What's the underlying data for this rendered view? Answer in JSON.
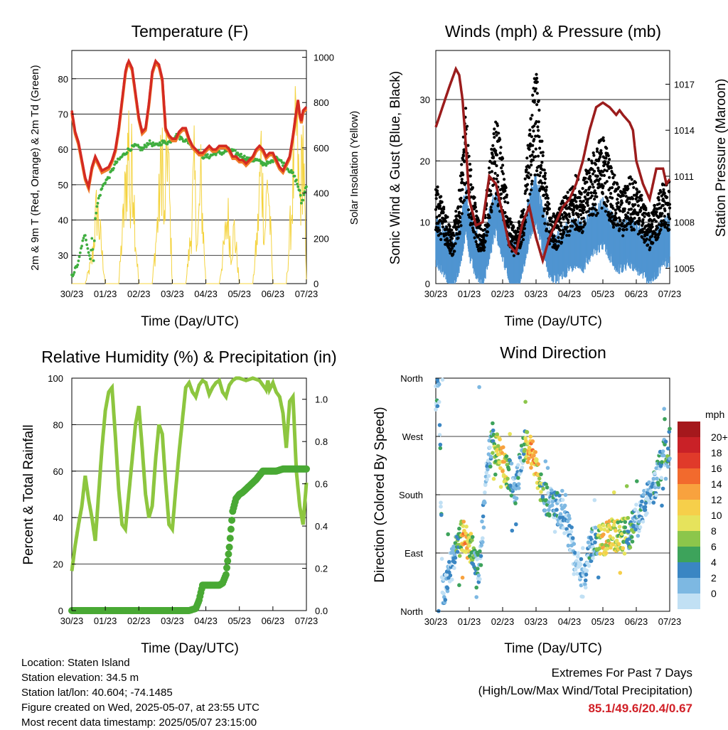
{
  "chart_data": [
    {
      "type": "line",
      "title": "Temperature (F)",
      "xlabel": "Time (Day/UTC)",
      "ylabel": "2m & 9m T (Red, Orange) & 2m Td (Green)",
      "y2label": "Solar Insolation (Yellow)",
      "x_ticks": [
        "30/23",
        "01/23",
        "02/23",
        "03/23",
        "04/23",
        "05/23",
        "06/23",
        "07/23"
      ],
      "y_ticks": [
        30,
        40,
        50,
        60,
        70,
        80
      ],
      "y2_ticks": [
        0,
        200,
        400,
        600,
        800,
        1000
      ],
      "ylim": [
        22,
        88
      ],
      "y2lim": [
        0,
        1030
      ],
      "colors": {
        "t2m": "#d42a22",
        "t9m": "#f07a28",
        "td": "#3fae3f",
        "solar": "#f4d33f"
      },
      "series": [
        {
          "key": "t2m",
          "x": [
            0,
            0.05,
            0.1,
            0.2,
            0.3,
            0.4,
            0.5,
            0.6,
            0.7,
            0.8,
            0.9,
            1.0,
            1.1,
            1.2,
            1.3,
            1.4,
            1.5,
            1.6,
            1.65,
            1.7,
            1.8,
            1.9,
            2.0,
            2.1,
            2.2,
            2.3,
            2.4,
            2.5,
            2.6,
            2.7,
            2.75,
            2.8,
            2.9,
            3.0,
            3.1,
            3.2,
            3.3,
            3.4,
            3.5,
            3.6,
            3.7,
            3.8,
            3.9,
            4.0,
            4.1,
            4.2,
            4.3,
            4.4,
            4.5,
            4.6,
            4.7,
            4.8,
            4.9,
            5.0,
            5.1,
            5.2,
            5.3,
            5.4,
            5.5,
            5.6,
            5.7,
            5.8,
            5.9,
            6.0,
            6.1,
            6.2,
            6.3,
            6.4,
            6.5,
            6.6,
            6.7,
            6.75,
            6.8,
            6.85,
            6.9,
            7.0
          ],
          "y": [
            71,
            68,
            65,
            62,
            57,
            52,
            49.5,
            55,
            58,
            56,
            54,
            54.5,
            55,
            57,
            60,
            66,
            74,
            82,
            84,
            85,
            83,
            76,
            69,
            65,
            66,
            73,
            82,
            85,
            84,
            80,
            73,
            66,
            64,
            63,
            63,
            65,
            66,
            66,
            63,
            61,
            60,
            59,
            59,
            60,
            61,
            60,
            60,
            61,
            61,
            61,
            60,
            58,
            58,
            57,
            57,
            56,
            57,
            58,
            60,
            61,
            60,
            58,
            59,
            59,
            57,
            55,
            54,
            56,
            58,
            64,
            71,
            74,
            70,
            68,
            71,
            72
          ]
        },
        {
          "key": "td",
          "x": [
            0,
            0.2,
            0.3,
            0.4,
            0.5,
            0.55,
            0.6,
            0.65,
            0.7,
            0.8,
            0.9,
            1.0,
            1.1,
            1.2,
            1.3,
            1.5,
            1.7,
            1.9,
            2.1,
            2.3,
            2.5,
            2.7,
            2.9,
            3.1,
            3.3,
            3.5,
            3.7,
            3.9,
            4.1,
            4.3,
            4.5,
            4.7,
            4.9,
            5.1,
            5.3,
            5.5,
            5.7,
            5.9,
            6.1,
            6.3,
            6.5,
            6.6,
            6.7,
            6.8,
            6.85,
            6.9,
            7.0
          ],
          "y": [
            24,
            28,
            33,
            36,
            31,
            29,
            35,
            28,
            41,
            46,
            49,
            51,
            52,
            54,
            56,
            58,
            60,
            61,
            60,
            62,
            61,
            62,
            62,
            64,
            63,
            62,
            60,
            58,
            58,
            59,
            59,
            60,
            59,
            58,
            57,
            57,
            56,
            56,
            58,
            56,
            54,
            53,
            51,
            48,
            45,
            46,
            50
          ]
        },
        {
          "key": "solar",
          "x": [
            0,
            0.4,
            0.6,
            0.75,
            0.9,
            1.0,
            1.4,
            1.6,
            1.7,
            1.75,
            1.8,
            1.9,
            2.0,
            2.4,
            2.6,
            2.7,
            2.75,
            2.85,
            3.0,
            3.4,
            3.55,
            3.65,
            3.75,
            3.85,
            4.0,
            4.4,
            4.55,
            4.65,
            4.75,
            4.85,
            5.0,
            5.4,
            5.55,
            5.65,
            5.75,
            5.85,
            6.0,
            6.4,
            6.55,
            6.7,
            6.8,
            6.9,
            7.0
          ],
          "y": [
            0,
            0,
            150,
            500,
            200,
            0,
            0,
            600,
            950,
            400,
            900,
            300,
            0,
            0,
            500,
            900,
            300,
            950,
            0,
            0,
            300,
            700,
            250,
            650,
            0,
            0,
            250,
            450,
            200,
            350,
            0,
            0,
            350,
            850,
            300,
            700,
            0,
            0,
            450,
            1000,
            500,
            900,
            0
          ]
        }
      ]
    },
    {
      "type": "scatter",
      "title": "Winds (mph) & Pressure (mb)",
      "xlabel": "Time (Day/UTC)",
      "ylabel": "Sonic Wind & Gust (Blue, Black)",
      "y2label": "Station Pressure (Maroon)",
      "x_ticks": [
        "30/23",
        "01/23",
        "02/23",
        "03/23",
        "04/23",
        "05/23",
        "06/23",
        "07/23"
      ],
      "y_ticks": [
        0,
        10,
        20,
        30
      ],
      "y2_ticks": [
        1005,
        1008,
        1011,
        1014,
        1017
      ],
      "ylim": [
        0,
        38
      ],
      "y2lim": [
        1004,
        1019.2
      ],
      "colors": {
        "wind": "#4f94d1",
        "gust": "#000000",
        "pressure": "#9b1c1c"
      },
      "wind_mean": {
        "x": [
          0,
          0.3,
          0.5,
          0.7,
          0.9,
          1.0,
          1.2,
          1.4,
          1.6,
          1.8,
          2.0,
          2.2,
          2.4,
          2.6,
          2.8,
          3.0,
          3.2,
          3.4,
          3.6,
          3.8,
          4.0,
          4.2,
          4.4,
          4.6,
          4.8,
          5.0,
          5.2,
          5.4,
          5.6,
          5.8,
          6.0,
          6.2,
          6.4,
          6.6,
          6.8,
          7.0
        ],
        "y": [
          7,
          5,
          3,
          6,
          12,
          8,
          5,
          3,
          8,
          12,
          8,
          4,
          3,
          5,
          11,
          14,
          9,
          5,
          4,
          5,
          6,
          7,
          6,
          8,
          9,
          10,
          8,
          6,
          6,
          7,
          6,
          5,
          4,
          5,
          7,
          7
        ]
      },
      "gust_mean": {
        "x": [
          0,
          0.3,
          0.5,
          0.7,
          0.9,
          1.0,
          1.2,
          1.4,
          1.6,
          1.8,
          2.0,
          2.2,
          2.4,
          2.6,
          2.8,
          3.0,
          3.2,
          3.4,
          3.6,
          3.8,
          4.0,
          4.2,
          4.4,
          4.6,
          4.8,
          5.0,
          5.2,
          5.4,
          5.6,
          5.8,
          6.0,
          6.2,
          6.4,
          6.6,
          6.8,
          7.0
        ],
        "y": [
          12,
          9,
          6,
          11,
          21,
          15,
          9,
          6,
          14,
          20,
          15,
          8,
          6,
          9,
          19,
          26,
          16,
          9,
          8,
          10,
          11,
          13,
          12,
          15,
          16,
          18,
          15,
          12,
          11,
          13,
          12,
          10,
          8,
          10,
          12,
          12
        ]
      },
      "pressure": {
        "x": [
          0,
          0.2,
          0.4,
          0.6,
          0.7,
          0.8,
          0.9,
          1.0,
          1.2,
          1.4,
          1.6,
          1.8,
          2.0,
          2.2,
          2.4,
          2.6,
          2.8,
          3.0,
          3.2,
          3.4,
          3.6,
          3.8,
          4.0,
          4.2,
          4.4,
          4.6,
          4.8,
          5.0,
          5.2,
          5.4,
          5.5,
          5.6,
          5.8,
          5.9,
          6.0,
          6.2,
          6.4,
          6.6,
          6.8,
          6.9,
          7.0
        ],
        "y": [
          1014.2,
          1015.5,
          1016.8,
          1018.0,
          1017.6,
          1016.0,
          1013.0,
          1009.5,
          1007.8,
          1008.0,
          1011.0,
          1010.5,
          1008.5,
          1006.5,
          1006.0,
          1008.0,
          1009.0,
          1007.0,
          1005.5,
          1007.0,
          1008.0,
          1009.0,
          1009.5,
          1010.5,
          1012.0,
          1014.0,
          1015.5,
          1015.8,
          1015.5,
          1015.0,
          1015.3,
          1015.0,
          1014.5,
          1014.0,
          1012.0,
          1010.5,
          1009.5,
          1011.5,
          1011.5,
          1010.5,
          1010.8
        ]
      }
    },
    {
      "type": "line",
      "title": "Relative Humidity (%) & Precipitation (in)",
      "xlabel": "Time (Day/UTC)",
      "ylabel": "Percent & Total Rainfall",
      "x_ticks": [
        "30/23",
        "01/23",
        "02/23",
        "03/23",
        "04/23",
        "05/23",
        "06/23",
        "07/23"
      ],
      "y_ticks": [
        0,
        20,
        40,
        60,
        80,
        100
      ],
      "y2_ticks": [
        "0.0",
        "0.2",
        "0.4",
        "0.6",
        "0.8",
        "1.0"
      ],
      "ylim": [
        0,
        100
      ],
      "y2lim": [
        0,
        1.1
      ],
      "colors": {
        "rh": "#8dc63f",
        "precip": "#49a934"
      },
      "series": [
        {
          "key": "rh",
          "x": [
            0,
            0.1,
            0.2,
            0.3,
            0.4,
            0.5,
            0.6,
            0.7,
            0.8,
            0.9,
            1.0,
            1.1,
            1.2,
            1.3,
            1.4,
            1.5,
            1.6,
            1.7,
            1.8,
            1.9,
            2.0,
            2.1,
            2.2,
            2.3,
            2.4,
            2.5,
            2.6,
            2.7,
            2.8,
            2.9,
            3.0,
            3.1,
            3.2,
            3.3,
            3.4,
            3.5,
            3.6,
            3.7,
            3.8,
            3.9,
            4.0,
            4.1,
            4.2,
            4.3,
            4.4,
            4.5,
            4.6,
            4.7,
            4.8,
            4.9,
            5.0,
            5.2,
            5.4,
            5.6,
            5.8,
            5.85,
            5.9,
            6.0,
            6.1,
            6.2,
            6.3,
            6.4,
            6.5,
            6.6,
            6.7,
            6.8,
            6.9,
            7.0
          ],
          "y": [
            17,
            28,
            37,
            45,
            58,
            48,
            40,
            30,
            50,
            70,
            86,
            94,
            96,
            75,
            52,
            37,
            35,
            50,
            65,
            80,
            88,
            70,
            50,
            40,
            45,
            65,
            80,
            76,
            55,
            37,
            35,
            52,
            68,
            82,
            96,
            98,
            94,
            92,
            97,
            99,
            98,
            93,
            96,
            98,
            99,
            94,
            92,
            97,
            99,
            100,
            100,
            99,
            100,
            99,
            95,
            99,
            95,
            98,
            94,
            92,
            85,
            70,
            90,
            92,
            60,
            45,
            37,
            55
          ]
        },
        {
          "key": "precip",
          "x": [
            0,
            0.5,
            1.0,
            1.5,
            2.0,
            2.5,
            3.0,
            3.5,
            3.7,
            3.8,
            3.9,
            4.0,
            4.2,
            4.4,
            4.5,
            4.6,
            4.7,
            4.8,
            4.9,
            5.0,
            5.1,
            5.3,
            5.5,
            5.7,
            5.9,
            6.1,
            6.3,
            6.5,
            6.7,
            6.9,
            7.0
          ],
          "y": [
            0,
            0,
            0,
            0,
            0,
            0,
            0,
            0,
            0.01,
            0.05,
            0.12,
            0.12,
            0.12,
            0.12,
            0.13,
            0.17,
            0.3,
            0.47,
            0.53,
            0.55,
            0.56,
            0.59,
            0.62,
            0.66,
            0.66,
            0.66,
            0.67,
            0.67,
            0.67,
            0.67,
            0.67
          ]
        }
      ]
    },
    {
      "type": "scatter",
      "title": "Wind Direction",
      "xlabel": "Time (Day/UTC)",
      "ylabel": "Direction (Colored By Speed)",
      "x_ticks": [
        "30/23",
        "01/23",
        "02/23",
        "03/23",
        "04/23",
        "05/23",
        "06/23",
        "07/23"
      ],
      "y_ticks": [
        "North",
        "East",
        "South",
        "West",
        "North"
      ],
      "y_tick_values": [
        0,
        90,
        180,
        270,
        360
      ],
      "legend_title": "mph",
      "legend_labels": [
        "20+",
        "18",
        "16",
        "14",
        "12",
        "10",
        "8",
        "6",
        "4",
        "2",
        "0"
      ],
      "legend_colors": [
        "#a5181c",
        "#c92127",
        "#e03a2a",
        "#f26a2d",
        "#f8a23e",
        "#f6cf4a",
        "#e6e35c",
        "#8cc64b",
        "#3da35b",
        "#3a86c3",
        "#7db8e2",
        "#c1e0f4"
      ],
      "direction_mean": {
        "x": [
          0,
          0.1,
          0.2,
          0.3,
          0.4,
          0.5,
          0.6,
          0.7,
          0.8,
          0.9,
          1.0,
          1.1,
          1.3,
          1.5,
          1.6,
          1.7,
          1.8,
          1.9,
          2.0,
          2.2,
          2.4,
          2.6,
          2.7,
          2.8,
          2.9,
          3.0,
          3.1,
          3.2,
          3.4,
          3.6,
          3.8,
          4.0,
          4.2,
          4.4,
          4.5,
          4.6,
          4.8,
          5.0,
          5.2,
          5.4,
          5.6,
          5.8,
          6.0,
          6.2,
          6.4,
          6.6,
          6.8,
          7.0
        ],
        "y": [
          330,
          348,
          20,
          40,
          60,
          75,
          90,
          105,
          120,
          110,
          100,
          95,
          60,
          200,
          240,
          260,
          250,
          245,
          230,
          210,
          190,
          250,
          260,
          250,
          240,
          230,
          200,
          180,
          170,
          160,
          150,
          120,
          80,
          40,
          60,
          100,
          110,
          110,
          115,
          115,
          120,
          120,
          140,
          160,
          180,
          200,
          240,
          260
        ]
      },
      "speed_mean": {
        "x": [
          0,
          0.5,
          0.9,
          1.2,
          1.5,
          1.8,
          2.0,
          2.3,
          2.6,
          2.8,
          3.0,
          3.3,
          3.6,
          4.0,
          4.4,
          4.8,
          5.0,
          5.3,
          5.6,
          6.0,
          6.4,
          6.8,
          7.0
        ],
        "y": [
          4,
          3,
          14,
          5,
          2,
          10,
          12,
          5,
          4,
          14,
          12,
          5,
          4,
          3,
          2,
          5,
          12,
          10,
          10,
          4,
          3,
          5,
          6
        ]
      }
    }
  ],
  "footer": {
    "location": "Location: Staten Island",
    "elevation": "Station elevation: 34.5 m",
    "latlon": "Station lat/lon: 40.604; -74.1485",
    "created": "Figure created on Wed, 2025-05-07, at 23:55 UTC",
    "latest": "Most recent data timestamp: 2025/05/07 23:15:00"
  },
  "extremes": {
    "title": "Extremes For Past 7 Days",
    "subtitle": "(High/Low/Max Wind/Total Precipitation)",
    "values": "85.1/49.6/20.4/0.67"
  }
}
